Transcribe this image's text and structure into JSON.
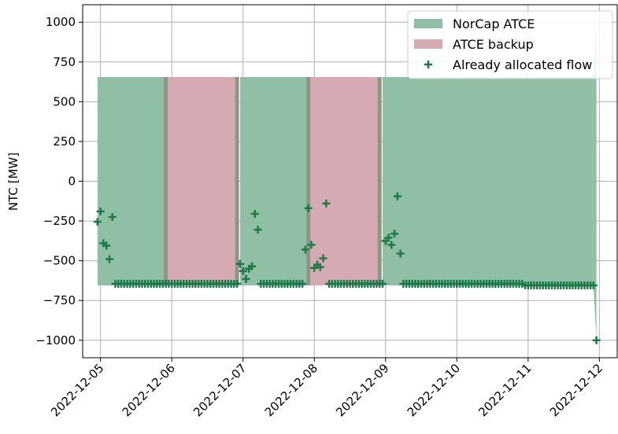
{
  "chart_data": {
    "type": "area",
    "ylabel": "NTC [MW]",
    "xlabel": "",
    "ylim": [
      -1110,
      1110
    ],
    "xlim": [
      "2022-12-04 18:00",
      "2022-12-12 06:00"
    ],
    "x_ticks": [
      "2022-12-05",
      "2022-12-06",
      "2022-12-07",
      "2022-12-08",
      "2022-12-09",
      "2022-12-10",
      "2022-12-11",
      "2022-12-12"
    ],
    "y_ticks": [
      -1000,
      -750,
      -500,
      -250,
      0,
      250,
      500,
      750,
      1000
    ],
    "grid": true,
    "legend_position": "top-right",
    "colors": {
      "norcap": "#8fbfa5",
      "backup": "#d6aab3",
      "overlap": "#8e9588",
      "flow": "#1a7a48"
    },
    "series": [
      {
        "name": "NorCap ATCE",
        "kind": "fill_between",
        "segments": [
          {
            "start": "2022-12-04 23:00",
            "end": "2022-12-05 22:00",
            "upper": 655,
            "lower": -655
          },
          {
            "start": "2022-12-06 23:00",
            "end": "2022-12-07 22:00",
            "upper": 655,
            "lower": -655
          },
          {
            "start": "2022-12-08 23:00",
            "end": "2022-12-11 22:00",
            "upper": 655,
            "lower": -655
          }
        ]
      },
      {
        "name": "ATCE backup",
        "kind": "fill_between",
        "segments": [
          {
            "start": "2022-12-05 22:00",
            "end": "2022-12-06 22:00",
            "upper": 655,
            "lower": -655
          },
          {
            "start": "2022-12-07 22:00",
            "end": "2022-12-08 22:00",
            "upper": 655,
            "lower": -655
          }
        ]
      },
      {
        "name": "Already allocated flow",
        "kind": "scatter",
        "marker": "+",
        "points": [
          [
            "2022-12-04 23:00",
            -255
          ],
          [
            "2022-12-05 00:00",
            -190
          ],
          [
            "2022-12-05 01:00",
            -390
          ],
          [
            "2022-12-05 02:00",
            -405
          ],
          [
            "2022-12-05 03:00",
            -490
          ],
          [
            "2022-12-05 04:00",
            -225
          ],
          [
            "2022-12-06 23:00",
            -520
          ],
          [
            "2022-12-07 00:00",
            -565
          ],
          [
            "2022-12-07 01:00",
            -615
          ],
          [
            "2022-12-07 02:00",
            -550
          ],
          [
            "2022-12-07 03:00",
            -535
          ],
          [
            "2022-12-07 04:00",
            -205
          ],
          [
            "2022-12-07 05:00",
            -305
          ],
          [
            "2022-12-07 21:00",
            -430
          ],
          [
            "2022-12-07 22:00",
            -170
          ],
          [
            "2022-12-07 23:00",
            -400
          ],
          [
            "2022-12-08 00:00",
            -545
          ],
          [
            "2022-12-08 01:00",
            -525
          ],
          [
            "2022-12-08 02:00",
            -540
          ],
          [
            "2022-12-08 03:00",
            -485
          ],
          [
            "2022-12-08 04:00",
            -140
          ],
          [
            "2022-12-09 00:00",
            -375
          ],
          [
            "2022-12-09 01:00",
            -355
          ],
          [
            "2022-12-09 02:00",
            -400
          ],
          [
            "2022-12-09 03:00",
            -330
          ],
          [
            "2022-12-09 04:00",
            -95
          ],
          [
            "2022-12-09 05:00",
            -455
          ],
          [
            "2022-12-11 23:00",
            -1000
          ]
        ],
        "baseline_runs": [
          {
            "start": "2022-12-05 05:00",
            "end": "2022-12-06 22:00",
            "value": -645
          },
          {
            "start": "2022-12-07 06:00",
            "end": "2022-12-07 20:00",
            "value": -645
          },
          {
            "start": "2022-12-08 05:00",
            "end": "2022-12-08 23:00",
            "value": -645
          },
          {
            "start": "2022-12-09 06:00",
            "end": "2022-12-10 22:00",
            "value": -645
          },
          {
            "start": "2022-12-10 23:00",
            "end": "2022-12-11 22:00",
            "value": -655
          }
        ]
      }
    ]
  }
}
